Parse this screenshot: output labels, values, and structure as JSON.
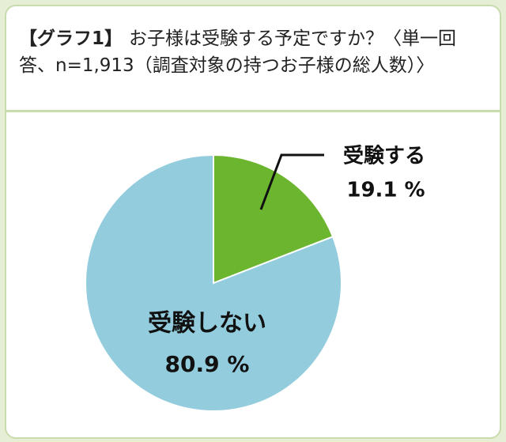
{
  "chart_data": {
    "type": "pie",
    "label": "【グラフ1】",
    "title": "お子様は受験する予定ですか？〈単一回答、n=1,913（調査対象の持つお子様の総人数）〉",
    "categories": [
      "受験する",
      "受験しない"
    ],
    "values": [
      19.1,
      80.9
    ],
    "value_labels": [
      "19.1 %",
      "80.9 %"
    ],
    "colors": [
      "#6cb52f",
      "#93cddd"
    ]
  }
}
